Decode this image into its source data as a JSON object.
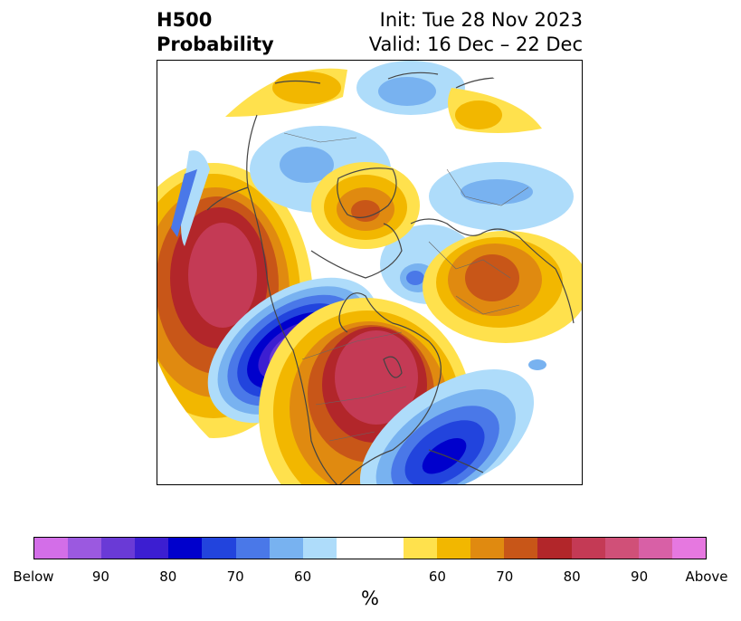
{
  "title": {
    "left_line1": "H500",
    "left_line2": "Probability",
    "right_line1": "Init: Tue 28 Nov 2023",
    "right_line2": "Valid: 16 Dec – 22 Dec"
  },
  "colorbar": {
    "unit": "%",
    "colors": [
      "#d36ee8",
      "#9b59e0",
      "#6a3ad6",
      "#3c1ed1",
      "#0000cc",
      "#2244dd",
      "#4a78e8",
      "#78b2f0",
      "#aedcfa",
      "#ffffff",
      "#ffffff",
      "#ffe14d",
      "#f2b700",
      "#e08a10",
      "#c85618",
      "#b2262a",
      "#c43a55",
      "#d05078",
      "#d860a6",
      "#e678e0"
    ],
    "labels": [
      "Below",
      "90",
      "80",
      "70",
      "60",
      "60",
      "70",
      "80",
      "90",
      "Above"
    ]
  }
}
